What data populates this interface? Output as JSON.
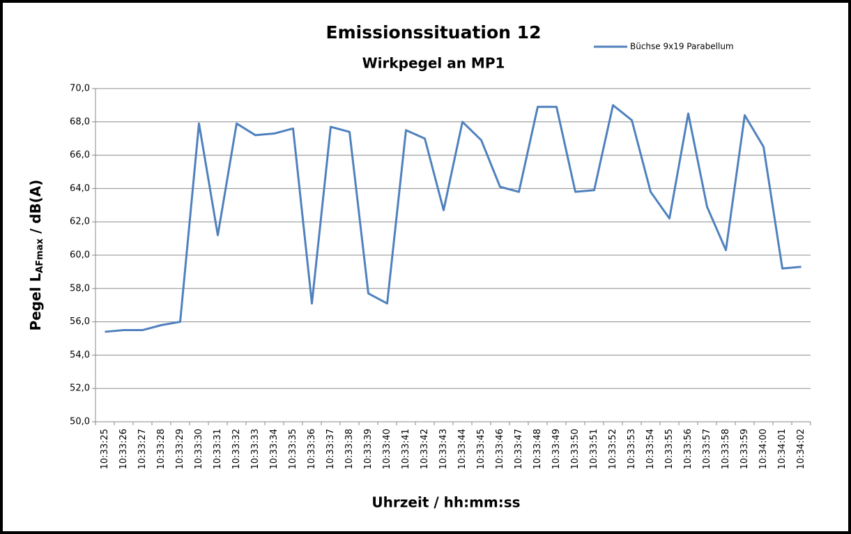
{
  "chart_data": {
    "type": "line",
    "title": "Emissionssituation 12",
    "subtitle": "Wirkpegel an MP1",
    "x_label": "Uhrzeit / hh:mm:ss",
    "y_label": [
      "Pegel L",
      "AFmax",
      " / dB(A)"
    ],
    "categories": [
      "10:33:25",
      "10:33:26",
      "10:33:27",
      "10:33:28",
      "10:33:29",
      "10:33:30",
      "10:33:31",
      "10:33:32",
      "10:33:33",
      "10:33:34",
      "10:33:35",
      "10:33:36",
      "10:33:37",
      "10:33:38",
      "10:33:39",
      "10:33:40",
      "10:33:41",
      "10:33:42",
      "10:33:43",
      "10:33:44",
      "10:33:45",
      "10:33:46",
      "10:33:47",
      "10:33:48",
      "10:33:49",
      "10:33:50",
      "10:33:51",
      "10:33:52",
      "10:33:53",
      "10:33:54",
      "10:33:55",
      "10:33:56",
      "10:33:57",
      "10:33:58",
      "10:33:59",
      "10:34:00",
      "10:34:01",
      "10:34:02"
    ],
    "series": [
      {
        "name": "Büchse 9x19 Parabellum",
        "color": "#4f81bd",
        "values": [
          55.4,
          55.5,
          55.5,
          55.8,
          56.0,
          67.9,
          61.2,
          67.9,
          67.2,
          67.3,
          67.6,
          57.1,
          67.7,
          67.4,
          57.7,
          57.1,
          67.5,
          67.0,
          62.7,
          68.0,
          66.9,
          64.1,
          63.8,
          68.9,
          68.9,
          63.8,
          63.9,
          69.0,
          68.1,
          63.8,
          62.2,
          68.5,
          62.9,
          60.3,
          68.4,
          66.5,
          59.2,
          59.3
        ]
      }
    ],
    "ylim": [
      50,
      70
    ],
    "yticks": [
      {
        "value": 50,
        "label": "50,0"
      },
      {
        "value": 52,
        "label": "52,0"
      },
      {
        "value": 54,
        "label": "54,0"
      },
      {
        "value": 56,
        "label": "56,0"
      },
      {
        "value": 58,
        "label": "58,0"
      },
      {
        "value": 60,
        "label": "60,0"
      },
      {
        "value": 62,
        "label": "62,0"
      },
      {
        "value": 64,
        "label": "64,0"
      },
      {
        "value": 66,
        "label": "66,0"
      },
      {
        "value": 68,
        "label": "68,0"
      },
      {
        "value": 70,
        "label": "70,0"
      }
    ],
    "grid": true,
    "legend": "top-right"
  }
}
